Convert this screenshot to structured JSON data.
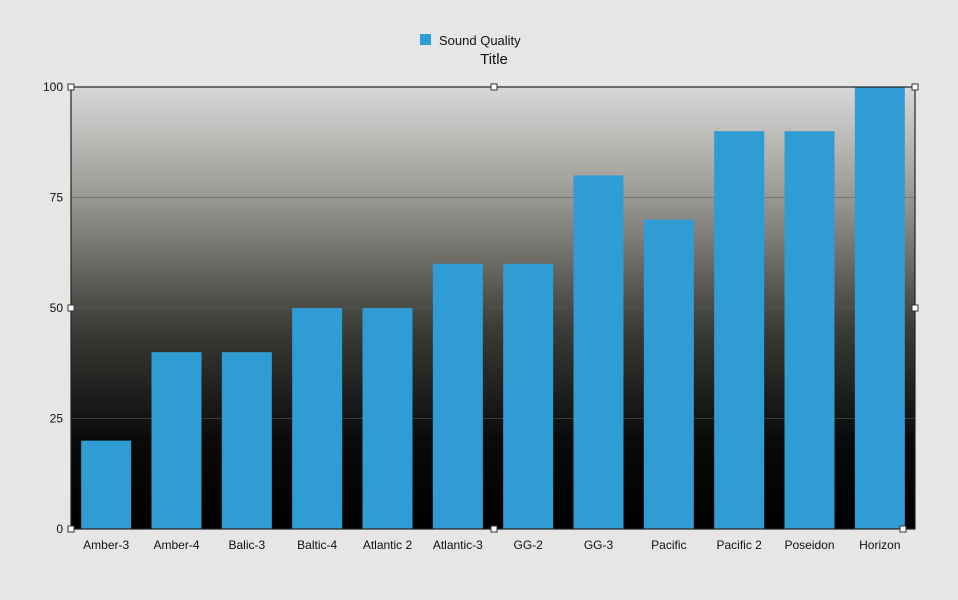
{
  "chart_data": {
    "type": "bar",
    "title": "Title",
    "legend": {
      "label": "Sound Quality",
      "placement": "top-center"
    },
    "categories": [
      "Amber-3",
      "Amber-4",
      "Balic-3",
      "Baltic-4",
      "Atlantic 2",
      "Atlantic-3",
      "GG-2",
      "GG-3",
      "Pacific",
      "Pacific 2",
      "Poseidon",
      "Horizon"
    ],
    "series": [
      {
        "name": "Sound Quality",
        "values": [
          20,
          40,
          40,
          50,
          50,
          60,
          60,
          80,
          70,
          90,
          90,
          100
        ]
      }
    ],
    "yticks": [
      "0",
      "25",
      "50",
      "75",
      "100"
    ],
    "ylim": [
      0,
      100
    ],
    "grid": true,
    "colors": {
      "bar": "#2f9dd3",
      "plot_top": "#dcdcdc",
      "plot_bottom": "#020202"
    }
  }
}
